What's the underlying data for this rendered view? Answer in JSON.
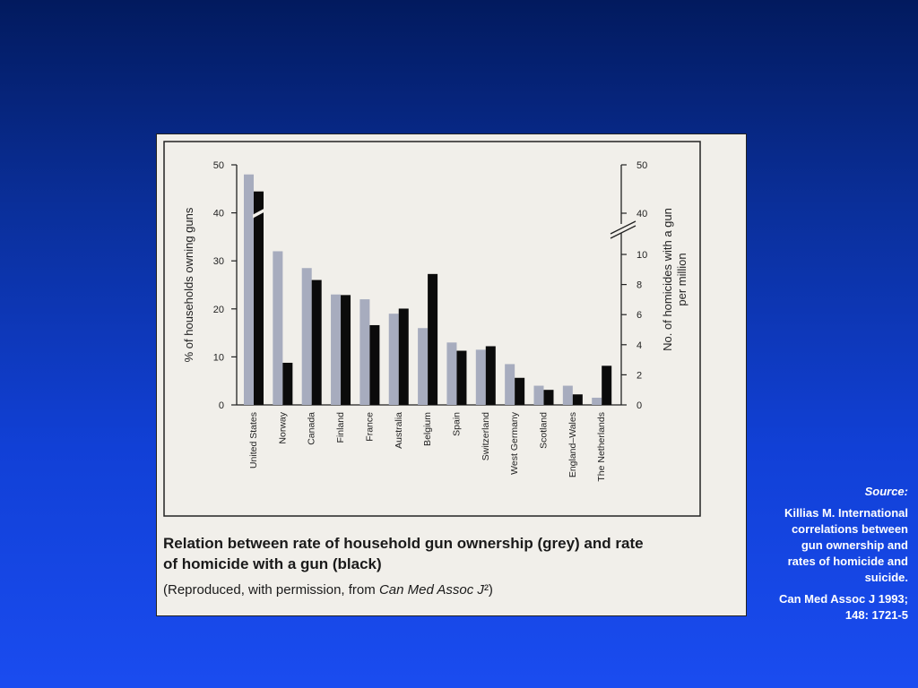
{
  "chart_data": {
    "type": "bar",
    "title": "Relation between rate of household gun ownership (grey) and rate of homicide with a gun (black)",
    "ylabel": "% of households owning guns",
    "y2label": "No. of homicides with a gun per million",
    "ylim": [
      0,
      50
    ],
    "yticks": [
      "0",
      "10",
      "20",
      "30",
      "40",
      "50"
    ],
    "y2ticks": [
      "0",
      "2",
      "4",
      "6",
      "8",
      "10",
      "40",
      "50"
    ],
    "y2_scale": "broken: 0-10 linear, break, 40-50",
    "categories": [
      "United States",
      "Norway",
      "Canada",
      "Finland",
      "France",
      "Australia",
      "Belgium",
      "Spain",
      "Switzerland",
      "West Germany",
      "Scotland",
      "England–Wales",
      "The Netherlands"
    ],
    "series": [
      {
        "color": "#a7acbe",
        "values": [
          48.0,
          32.0,
          28.5,
          23.0,
          22.0,
          19.0,
          16.0,
          13.0,
          11.5,
          8.5,
          4.0,
          4.0,
          1.5
        ]
      },
      {
        "color": "#0b0b0b",
        "values": [
          44.5,
          2.8,
          8.3,
          7.3,
          5.3,
          6.4,
          8.7,
          3.6,
          3.9,
          1.8,
          1.0,
          0.7,
          2.6
        ]
      }
    ]
  },
  "caption": {
    "line1": "Relation between rate of household gun ownership (grey) and rate",
    "line2": "of homicide with a gun (black)",
    "reproduced_prefix": "(Reproduced, with permission, from ",
    "reproduced_journal": "Can Med Assoc J",
    "reproduced_suffix": "²)"
  },
  "source": {
    "label": "Source:",
    "text": "Killias M. International correlations between gun ownership and rates of homicide and suicide.",
    "citation": "Can Med Assoc J 1993; 148: 1721-5"
  }
}
